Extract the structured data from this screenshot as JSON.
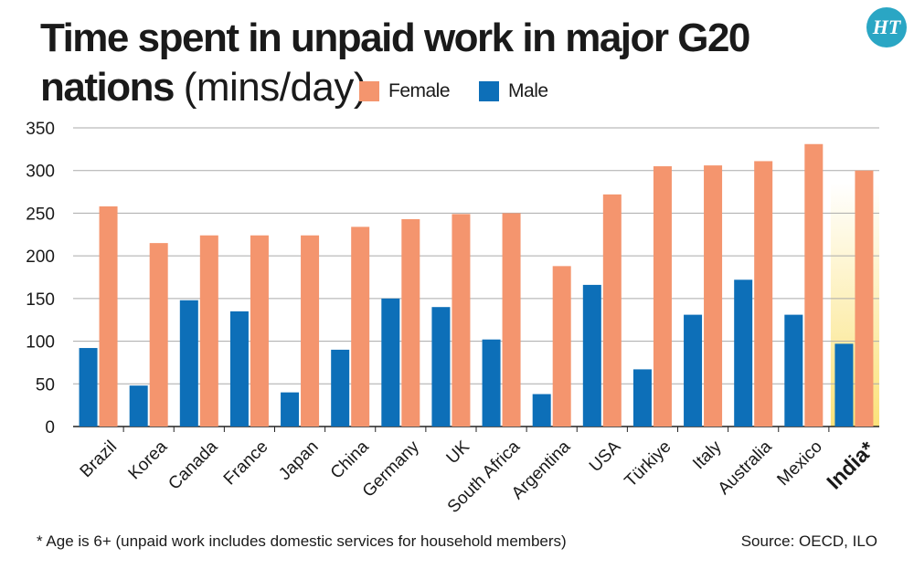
{
  "title": {
    "line1": "Time spent in unpaid work in major G20",
    "line2": "nations",
    "unit": "(mins/day)"
  },
  "legend": {
    "female": "Female",
    "male": "Male"
  },
  "brand": {
    "logo_text": "HT"
  },
  "footnote": "* Age is 6+ (unpaid work includes domestic services for household members)",
  "source": "Source: OECD, ILO",
  "colors": {
    "female": "#f4956e",
    "male": "#0d6fb8",
    "highlight": "#fbe27a",
    "grid": "#aaaaaa"
  },
  "chart_data": {
    "type": "bar",
    "title": "Time spent in unpaid work in major G20 nations (mins/day)",
    "xlabel": "",
    "ylabel": "",
    "ylim": [
      0,
      350
    ],
    "yticks": [
      0,
      50,
      100,
      150,
      200,
      250,
      300,
      350
    ],
    "grid": true,
    "legend_position": "top",
    "highlight_category": "India*",
    "categories": [
      "Brazil",
      "Korea",
      "Canada",
      "France",
      "Japan",
      "China",
      "Germany",
      "UK",
      "South Africa",
      "Argentina",
      "USA",
      "Türkiye",
      "Italy",
      "Australia",
      "Mexico",
      "India*"
    ],
    "series": [
      {
        "name": "Male",
        "values": [
          92,
          48,
          148,
          135,
          40,
          90,
          150,
          140,
          102,
          38,
          166,
          67,
          131,
          172,
          131,
          97
        ]
      },
      {
        "name": "Female",
        "values": [
          258,
          215,
          224,
          224,
          224,
          234,
          243,
          249,
          250,
          188,
          272,
          305,
          306,
          311,
          331,
          300
        ]
      }
    ]
  }
}
